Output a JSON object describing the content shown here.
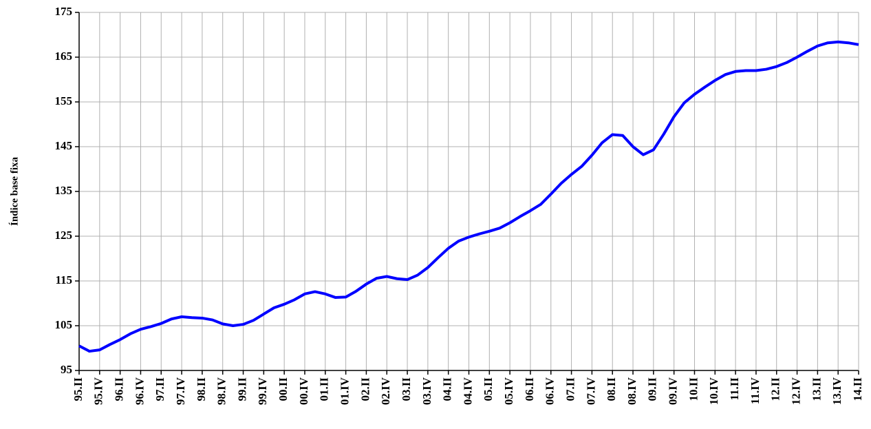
{
  "chart_data": {
    "type": "line",
    "y_label": "Índice base fixa",
    "categories": [
      "95.II",
      null,
      "95.IV",
      null,
      "96.II",
      null,
      "96.IV",
      null,
      "97.II",
      null,
      "97.IV",
      null,
      "98.II",
      null,
      "98.IV",
      null,
      "99.II",
      null,
      "99.IV",
      null,
      "00.II",
      null,
      "00.IV",
      null,
      "01.II",
      null,
      "01.IV",
      null,
      "02.II",
      null,
      "02.IV",
      null,
      "03.II",
      null,
      "03.IV",
      null,
      "04.II",
      null,
      "04.IV",
      null,
      "05.II",
      null,
      "05.IV",
      null,
      "06.II",
      null,
      "06.IV",
      null,
      "07.II",
      null,
      "07.IV",
      null,
      "08.II",
      null,
      "08.IV",
      null,
      "09.II",
      null,
      "09.IV",
      null,
      "10.II",
      null,
      "10.IV",
      null,
      "11.II",
      null,
      "11.IV",
      null,
      "12.II",
      null,
      "12.IV",
      null,
      "13.II",
      null,
      "13.IV",
      null,
      "14.II"
    ],
    "values": [
      100.5,
      99.3,
      99.6,
      100.8,
      101.9,
      103.2,
      104.2,
      104.8,
      105.5,
      106.5,
      107.0,
      106.8,
      106.7,
      106.3,
      105.4,
      105.0,
      105.3,
      106.2,
      107.6,
      109.0,
      109.8,
      110.8,
      112.1,
      112.6,
      112.1,
      111.3,
      111.4,
      112.7,
      114.3,
      115.6,
      116.0,
      115.5,
      115.3,
      116.3,
      118.0,
      120.2,
      122.3,
      123.9,
      124.8,
      125.5,
      126.1,
      126.8,
      128.0,
      129.4,
      130.7,
      132.1,
      134.4,
      136.8,
      138.8,
      140.6,
      143.1,
      145.9,
      147.7,
      147.5,
      145.0,
      143.2,
      144.3,
      147.8,
      151.7,
      154.8,
      156.7,
      158.3,
      159.8,
      161.1,
      161.8,
      162.0,
      162.0,
      162.3,
      162.9,
      163.8,
      165.0,
      166.3,
      167.5,
      168.2,
      168.4,
      168.2,
      167.8
    ],
    "color": "#0000ff",
    "ylim": [
      95,
      175
    ],
    "yticks": [
      95,
      105,
      115,
      125,
      135,
      145,
      155,
      165,
      175
    ],
    "grid": true
  }
}
